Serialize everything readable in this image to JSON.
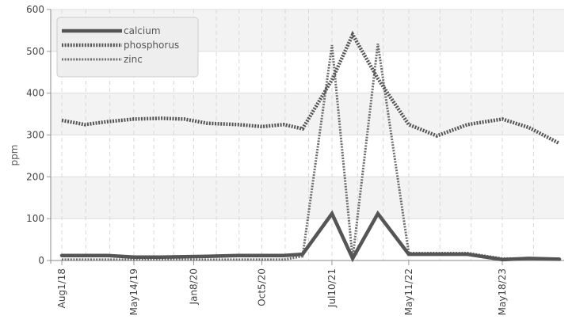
{
  "chart_data": {
    "type": "line",
    "title": "",
    "xlabel": "",
    "ylabel": "ppm",
    "ylim": [
      0,
      600
    ],
    "yticks": [
      0,
      100,
      200,
      300,
      400,
      500,
      600
    ],
    "x_tick_labels": [
      "Aug1/18",
      "May14/19",
      "Jan8/20",
      "Oct5/20",
      "Jul10/21",
      "May11/22",
      "May18/23"
    ],
    "x": [
      "2018-08-01",
      "2018-11-01",
      "2019-02-01",
      "2019-05-14",
      "2019-09-01",
      "2019-12-01",
      "2020-03-01",
      "2020-07-01",
      "2020-10-05",
      "2021-01-01",
      "2021-03-15",
      "2021-07-10",
      "2021-10-01",
      "2022-01-10",
      "2022-05-11",
      "2022-09-01",
      "2023-01-01",
      "2023-05-18",
      "2023-09-01",
      "2024-01-01"
    ],
    "series": [
      {
        "name": "calcium",
        "color": "#555555",
        "style": "solid",
        "values": [
          12,
          12,
          12,
          8,
          8,
          9,
          10,
          12,
          12,
          12,
          15,
          112,
          5,
          112,
          15,
          15,
          15,
          2,
          5,
          3
        ]
      },
      {
        "name": "phosphorus",
        "color": "#555555",
        "style": "dotted",
        "values": [
          335,
          325,
          332,
          338,
          340,
          338,
          328,
          325,
          320,
          325,
          315,
          432,
          540,
          435,
          325,
          298,
          325,
          338,
          318,
          280
        ]
      },
      {
        "name": "zinc",
        "color": "#6e6e6e",
        "style": "dashed",
        "values": [
          2,
          2,
          2,
          2,
          2,
          2,
          2,
          2,
          2,
          2,
          10,
          515,
          5,
          518,
          18,
          18,
          18,
          5,
          5,
          3
        ]
      }
    ],
    "grid": true,
    "legend_position": "top-left"
  }
}
